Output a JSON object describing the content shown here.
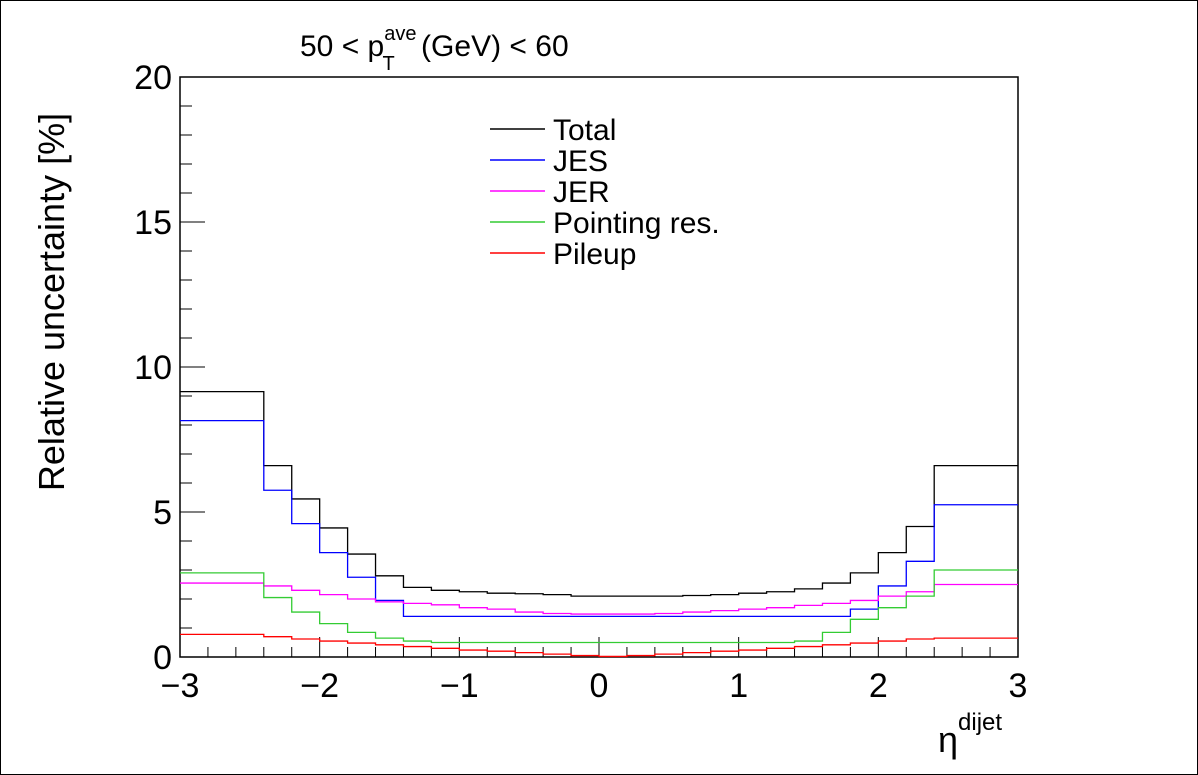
{
  "chart_data": {
    "type": "line",
    "title_parts": {
      "pre": "50 < p",
      "sup": "ave",
      "sub": "T",
      "post": " (GeV) < 60"
    },
    "ylabel": "Relative uncertainty [%]",
    "xlabel_base": "η",
    "xlabel_sup": "dijet",
    "xlim": [
      -3,
      3
    ],
    "ylim": [
      0,
      20
    ],
    "x_ticks": [
      "−3",
      "−2",
      "−1",
      "0",
      "1",
      "2",
      "3"
    ],
    "y_ticks": [
      "0",
      "5",
      "10",
      "15",
      "20"
    ],
    "bin_edges": [
      -3.0,
      -2.4,
      -2.2,
      -2.0,
      -1.8,
      -1.6,
      -1.4,
      -1.2,
      -1.0,
      -0.8,
      -0.6,
      -0.4,
      -0.2,
      0.0,
      0.2,
      0.4,
      0.6,
      0.8,
      1.0,
      1.2,
      1.4,
      1.6,
      1.8,
      2.0,
      2.2,
      2.4,
      3.0
    ],
    "legend": {
      "position": "top-center"
    },
    "grid": false,
    "series": [
      {
        "name": "Total",
        "color": "#000000",
        "values": [
          9.15,
          6.6,
          5.45,
          4.45,
          3.55,
          2.8,
          2.4,
          2.3,
          2.25,
          2.2,
          2.18,
          2.15,
          2.1,
          2.1,
          2.1,
          2.1,
          2.12,
          2.15,
          2.2,
          2.25,
          2.35,
          2.55,
          2.9,
          3.6,
          4.5,
          6.6
        ]
      },
      {
        "name": "JES",
        "color": "#0000ff",
        "values": [
          8.15,
          5.75,
          4.6,
          3.6,
          2.75,
          1.95,
          1.4,
          1.4,
          1.4,
          1.4,
          1.4,
          1.4,
          1.4,
          1.4,
          1.4,
          1.4,
          1.4,
          1.4,
          1.4,
          1.4,
          1.4,
          1.4,
          1.65,
          2.45,
          3.3,
          5.25
        ]
      },
      {
        "name": "JER",
        "color": "#ff00ff",
        "values": [
          2.55,
          2.45,
          2.3,
          2.15,
          2.0,
          1.9,
          1.85,
          1.8,
          1.7,
          1.65,
          1.55,
          1.5,
          1.48,
          1.48,
          1.48,
          1.5,
          1.55,
          1.6,
          1.65,
          1.7,
          1.78,
          1.85,
          1.95,
          2.1,
          2.25,
          2.5
        ]
      },
      {
        "name": "Pointing res.",
        "color": "#33cc33",
        "values": [
          2.9,
          2.05,
          1.55,
          1.15,
          0.85,
          0.65,
          0.55,
          0.5,
          0.5,
          0.5,
          0.5,
          0.5,
          0.5,
          0.5,
          0.5,
          0.5,
          0.5,
          0.5,
          0.5,
          0.5,
          0.55,
          0.85,
          1.3,
          1.7,
          2.1,
          3.0
        ]
      },
      {
        "name": "Pileup",
        "color": "#ff0000",
        "values": [
          0.78,
          0.7,
          0.62,
          0.55,
          0.48,
          0.42,
          0.36,
          0.3,
          0.24,
          0.2,
          0.15,
          0.1,
          0.05,
          0.02,
          0.05,
          0.1,
          0.15,
          0.2,
          0.24,
          0.3,
          0.36,
          0.42,
          0.48,
          0.55,
          0.62,
          0.65
        ]
      }
    ]
  }
}
